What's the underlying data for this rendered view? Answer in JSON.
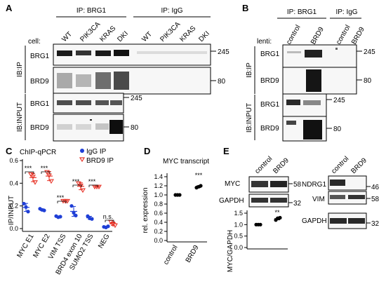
{
  "panelA": {
    "letter": "A",
    "ip_brg1": "IP: BRG1",
    "ip_igg": "IP: IgG",
    "cell_label": "cell:",
    "lanes": [
      "WT",
      "PIK3CA",
      "KRAS",
      "DKI",
      "WT",
      "PIK3CA",
      "KRAS",
      "DKI"
    ],
    "ib_ip": "IB:IP",
    "ib_input": "IB:INPUT",
    "blots": [
      {
        "label": "BRG1",
        "mw": "245"
      },
      {
        "label": "BRD9",
        "mw": "80"
      },
      {
        "label": "BRG1",
        "mw": "245"
      },
      {
        "label": "BRD9",
        "mw": "80"
      }
    ]
  },
  "panelB": {
    "letter": "B",
    "ip_brg1": "IP: BRG1",
    "ip_igg": "IP: IgG",
    "lenti_label": "lenti:",
    "lanes": [
      "control",
      "BRD9",
      "control",
      "BRD9"
    ],
    "ib_ip": "IB:IP",
    "ib_input": "IB:INPUT",
    "blots": [
      {
        "label": "BRG1",
        "mw": "245"
      },
      {
        "label": "BRD9",
        "mw": "80"
      },
      {
        "label": "BRG1",
        "mw": "245"
      },
      {
        "label": "BRD9",
        "mw": "80"
      }
    ]
  },
  "panelC": {
    "letter": "C",
    "chart_data": {
      "type": "scatter",
      "title": "ChIP-qPCR",
      "ylabel": "IP/INPUT",
      "ylim": [
        0,
        0.6
      ],
      "yticks": [
        "0.0",
        "0.2",
        "0.4",
        "0.6"
      ],
      "categories": [
        "MYC E1",
        "MYC E2",
        "VIM TSS",
        "BRD4 exon 10",
        "SUMO2 TSS",
        "NEG"
      ],
      "series": [
        {
          "name": "IgG IP",
          "color": "#1f3fd6",
          "values": [
            [
              0.22,
              0.19,
              0.15
            ],
            [
              0.175,
              0.165,
              0.16
            ],
            [
              0.11,
              0.1,
              0.105
            ],
            [
              0.2,
              0.14,
              0.115
            ],
            [
              0.11,
              0.09,
              0.085
            ],
            [
              0.015,
              0.01,
              0.02
            ]
          ]
        },
        {
          "name": "BRD9 IP",
          "color": "#e8372b",
          "values": [
            [
              0.48,
              0.46,
              0.41
            ],
            [
              0.5,
              0.47,
              0.42
            ],
            [
              0.245,
              0.245,
              0.245
            ],
            [
              0.4,
              0.38,
              0.34
            ],
            [
              0.37,
              0.37,
              0.37
            ],
            [
              0.06,
              0.04,
              0.03
            ]
          ]
        }
      ],
      "significance": [
        "***",
        "***",
        "***",
        "***",
        "***",
        "n.s."
      ]
    }
  },
  "panelD": {
    "letter": "D",
    "chart_data": {
      "type": "scatter",
      "title": "MYC transcript",
      "ylabel": "rel. expression",
      "ylim": [
        0,
        1.6
      ],
      "yticks": [
        "0.0",
        "0.2",
        "0.4",
        "0.6",
        "0.8",
        "1.0",
        "1.2",
        "1.4"
      ],
      "categories": [
        "control",
        "BRD9"
      ],
      "series": [
        {
          "name": "",
          "color": "#000000",
          "values": [
            [
              1.0,
              1.0,
              1.0
            ],
            [
              1.16,
              1.18,
              1.2
            ]
          ]
        }
      ],
      "significance": "***"
    }
  },
  "panelE": {
    "letter": "E",
    "lanes": [
      "control",
      "BRD9"
    ],
    "left_blots": [
      {
        "label": "MYC",
        "mw": "58"
      },
      {
        "label": "GAPDH",
        "mw": "32"
      }
    ],
    "right_blots": [
      {
        "label": "NDRG1",
        "mw": "46"
      },
      {
        "label": "VIM",
        "mw": "58"
      },
      {
        "label": "GAPDH",
        "mw": "32"
      }
    ],
    "chart_data": {
      "type": "scatter",
      "ylabel": "MYC/GAPDH",
      "ylim": [
        0,
        1.6
      ],
      "yticks": [
        "0.0",
        "0.5",
        "1.0",
        "1.5"
      ],
      "categories": [
        "control",
        "BRD9"
      ],
      "series": [
        {
          "name": "",
          "color": "#000000",
          "values": [
            [
              1.0,
              1.0,
              1.0
            ],
            [
              1.2,
              1.28,
              1.3
            ]
          ]
        }
      ],
      "significance": "**"
    }
  }
}
